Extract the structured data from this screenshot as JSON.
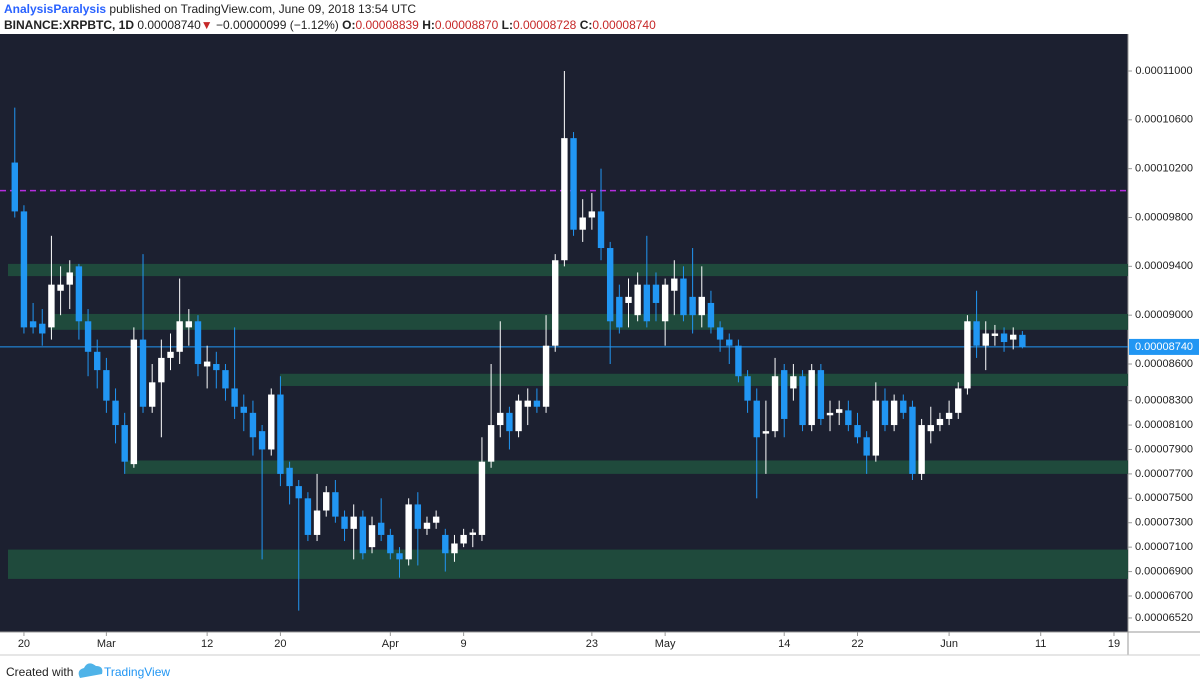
{
  "header": {
    "author": "AnalysisParalysis",
    "published": "published on TradingView.com, June 09, 2018 13:54 UTC",
    "symbol": "BINANCE:XRPBTC, 1D",
    "price": "0.00008740",
    "arrow": "▼",
    "change": "−0.00000099 (−1.12%)",
    "o_label": "O:",
    "o_value": "0.00008839",
    "h_label": "H:",
    "h_value": "0.00008870",
    "l_label": "L:",
    "l_value": "0.00008728",
    "c_label": "C:",
    "c_value": "0.00008740"
  },
  "footer": {
    "created": "Created with",
    "brand": "TradingView"
  },
  "chart_data": {
    "type": "candlestick",
    "categories": [
      null,
      "20",
      null,
      null,
      null,
      null,
      null,
      null,
      null,
      null,
      "Mar",
      null,
      null,
      null,
      null,
      null,
      null,
      null,
      null,
      null,
      null,
      "12",
      null,
      null,
      null,
      null,
      null,
      null,
      null,
      "20",
      null,
      null,
      null,
      null,
      null,
      null,
      null,
      null,
      null,
      null,
      null,
      "Apr",
      null,
      null,
      null,
      null,
      null,
      null,
      null,
      "9",
      null,
      null,
      null,
      null,
      null,
      null,
      null,
      null,
      null,
      null,
      null,
      null,
      null,
      "23",
      null,
      null,
      null,
      null,
      null,
      null,
      null,
      "May",
      null,
      null,
      null,
      null,
      null,
      null,
      null,
      null,
      null,
      null,
      null,
      null,
      "14",
      null,
      null,
      null,
      null,
      null,
      null,
      null,
      "22",
      null,
      null,
      null,
      null,
      null,
      null,
      null,
      null,
      null,
      "Jun",
      null,
      null,
      null,
      null,
      null,
      null,
      null,
      null,
      null,
      "11",
      null,
      null,
      null,
      null,
      null,
      null,
      null,
      "19"
    ],
    "open": [
      0.0001025,
      9.85e-05,
      8.95e-05,
      8.93e-05,
      8.9e-05,
      9.2e-05,
      9.25e-05,
      9.4e-05,
      8.95e-05,
      8.7e-05,
      8.55e-05,
      8.3e-05,
      8.1e-05,
      7.78e-05,
      8.8e-05,
      8.25e-05,
      8.45e-05,
      8.65e-05,
      8.7e-05,
      8.9e-05,
      8.95e-05,
      8.58e-05,
      8.6e-05,
      8.55e-05,
      8.4e-05,
      8.25e-05,
      8.2e-05,
      8.05e-05,
      7.9e-05,
      8.35e-05,
      7.75e-05,
      7.6e-05,
      7.5e-05,
      7.2e-05,
      7.4e-05,
      7.55e-05,
      7.35e-05,
      7.25e-05,
      7.35e-05,
      7.1e-05,
      7.3e-05,
      7.2e-05,
      7.05e-05,
      7e-05,
      7.45e-05,
      7.25e-05,
      7.3e-05,
      7.2e-05,
      7.05e-05,
      7.13e-05,
      7.2e-05,
      7.2e-05,
      7.8e-05,
      8.1e-05,
      8.2e-05,
      8.05e-05,
      8.25e-05,
      8.3e-05,
      8.25e-05,
      8.75e-05,
      9.45e-05,
      0.0001045,
      9.7e-05,
      9.8e-05,
      9.85e-05,
      9.55e-05,
      9.15e-05,
      9.1e-05,
      9e-05,
      9.25e-05,
      9.25e-05,
      8.95e-05,
      9.2e-05,
      9.3e-05,
      9.15e-05,
      9e-05,
      9.1e-05,
      8.9e-05,
      8.8e-05,
      8.75e-05,
      8.5e-05,
      8.3e-05,
      8.03e-05,
      8.05e-05,
      8.55e-05,
      8.4e-05,
      8.5e-05,
      8.1e-05,
      8.55e-05,
      8.18e-05,
      8.2e-05,
      8.22e-05,
      8.1e-05,
      8e-05,
      7.85e-05,
      8.3e-05,
      8.1e-05,
      8.3e-05,
      8.25e-05,
      7.7e-05,
      8.05e-05,
      8.1e-05,
      8.15e-05,
      8.2e-05,
      8.4e-05,
      8.95e-05,
      8.75e-05,
      8.83e-05,
      8.85e-05,
      8.8e-05,
      8.839e-05,
      null,
      null,
      null,
      null,
      null,
      null,
      null,
      null,
      null,
      null
    ],
    "high": [
      0.000107,
      9.9e-05,
      9.1e-05,
      9.05e-05,
      9.65e-05,
      9.4e-05,
      9.45e-05,
      9.42e-05,
      9.05e-05,
      8.8e-05,
      8.65e-05,
      8.4e-05,
      8.2e-05,
      8.9e-05,
      9.5e-05,
      8.6e-05,
      8.8e-05,
      8.85e-05,
      9.3e-05,
      9.05e-05,
      9e-05,
      8.75e-05,
      8.7e-05,
      8.6e-05,
      8.9e-05,
      8.35e-05,
      8.3e-05,
      8.1e-05,
      8.4e-05,
      8.5e-05,
      7.8e-05,
      7.65e-05,
      7.55e-05,
      7.7e-05,
      7.6e-05,
      7.65e-05,
      7.4e-05,
      7.45e-05,
      7.4e-05,
      7.35e-05,
      7.5e-05,
      7.25e-05,
      7.1e-05,
      7.5e-05,
      7.55e-05,
      7.35e-05,
      7.4e-05,
      7.25e-05,
      7.2e-05,
      7.25e-05,
      7.25e-05,
      8e-05,
      8.6e-05,
      8.95e-05,
      8.25e-05,
      8.35e-05,
      8.4e-05,
      8.4e-05,
      9e-05,
      9.5e-05,
      0.00011,
      0.000105,
      9.95e-05,
      0.0001,
      0.000102,
      9.6e-05,
      9.25e-05,
      9.3e-05,
      9.35e-05,
      9.65e-05,
      9.35e-05,
      9.3e-05,
      9.45e-05,
      9.4e-05,
      9.55e-05,
      9.4e-05,
      9.2e-05,
      8.95e-05,
      8.85e-05,
      8.8e-05,
      8.55e-05,
      8.4e-05,
      8.3e-05,
      8.65e-05,
      8.6e-05,
      8.6e-05,
      8.55e-05,
      8.6e-05,
      8.6e-05,
      8.3e-05,
      8.3e-05,
      8.3e-05,
      8.2e-05,
      8.05e-05,
      8.45e-05,
      8.4e-05,
      8.35e-05,
      8.35e-05,
      8.3e-05,
      8.15e-05,
      8.25e-05,
      8.2e-05,
      8.3e-05,
      8.45e-05,
      9e-05,
      9.2e-05,
      8.95e-05,
      8.92e-05,
      8.9e-05,
      8.9e-05,
      8.87e-05,
      null,
      null,
      null,
      null,
      null,
      null,
      null,
      null,
      null,
      null
    ],
    "low": [
      9.8e-05,
      8.85e-05,
      8.85e-05,
      8.75e-05,
      8.8e-05,
      9e-05,
      9.05e-05,
      8.8e-05,
      8.5e-05,
      8.4e-05,
      8.2e-05,
      7.95e-05,
      7.7e-05,
      7.75e-05,
      8.2e-05,
      8.2e-05,
      8e-05,
      8.55e-05,
      8.6e-05,
      8.75e-05,
      8.5e-05,
      8.4e-05,
      8.4e-05,
      8.3e-05,
      8.15e-05,
      8.05e-05,
      7.85e-05,
      7e-05,
      7.85e-05,
      7.6e-05,
      7.45e-05,
      6.58e-05,
      7.15e-05,
      7.15e-05,
      7.35e-05,
      7.3e-05,
      7.15e-05,
      7e-05,
      7e-05,
      7.05e-05,
      7.15e-05,
      7e-05,
      6.85e-05,
      6.95e-05,
      6.95e-05,
      7.2e-05,
      7.25e-05,
      6.9e-05,
      6.98e-05,
      7.1e-05,
      7.1e-05,
      7.15e-05,
      7.75e-05,
      8e-05,
      7.9e-05,
      8e-05,
      8.1e-05,
      8.2e-05,
      8.2e-05,
      8.7e-05,
      9.4e-05,
      9.65e-05,
      9.6e-05,
      9.7e-05,
      9.45e-05,
      8.6e-05,
      8.85e-05,
      8.9e-05,
      8.95e-05,
      8.9e-05,
      8.95e-05,
      8.75e-05,
      9e-05,
      8.95e-05,
      8.85e-05,
      8.9e-05,
      8.85e-05,
      8.7e-05,
      8.6e-05,
      8.45e-05,
      8.2e-05,
      7.5e-05,
      7.7e-05,
      8e-05,
      8e-05,
      8.3e-05,
      8.05e-05,
      8.05e-05,
      8.1e-05,
      8.05e-05,
      8.1e-05,
      8.05e-05,
      7.95e-05,
      7.7e-05,
      7.8e-05,
      8.05e-05,
      8.05e-05,
      8.15e-05,
      7.65e-05,
      7.65e-05,
      7.95e-05,
      8.05e-05,
      8.1e-05,
      8.15e-05,
      8.35e-05,
      8.65e-05,
      8.55e-05,
      8.75e-05,
      8.7e-05,
      8.72e-05,
      8.728e-05,
      null,
      null,
      null,
      null,
      null,
      null,
      null,
      null,
      null,
      null
    ],
    "close": [
      9.85e-05,
      8.9e-05,
      8.9e-05,
      8.85e-05,
      9.25e-05,
      9.25e-05,
      9.35e-05,
      8.95e-05,
      8.7e-05,
      8.55e-05,
      8.3e-05,
      8.1e-05,
      7.8e-05,
      8.8e-05,
      8.25e-05,
      8.45e-05,
      8.65e-05,
      8.7e-05,
      8.95e-05,
      8.95e-05,
      8.6e-05,
      8.62e-05,
      8.55e-05,
      8.4e-05,
      8.25e-05,
      8.2e-05,
      8e-05,
      7.9e-05,
      8.35e-05,
      7.7e-05,
      7.6e-05,
      7.5e-05,
      7.2e-05,
      7.4e-05,
      7.55e-05,
      7.35e-05,
      7.25e-05,
      7.35e-05,
      7.05e-05,
      7.28e-05,
      7.2e-05,
      7.05e-05,
      7e-05,
      7.45e-05,
      7.25e-05,
      7.3e-05,
      7.35e-05,
      7.05e-05,
      7.13e-05,
      7.2e-05,
      7.22e-05,
      7.8e-05,
      8.1e-05,
      8.2e-05,
      8.05e-05,
      8.3e-05,
      8.3e-05,
      8.25e-05,
      8.75e-05,
      9.45e-05,
      0.0001045,
      9.7e-05,
      9.8e-05,
      9.85e-05,
      9.55e-05,
      8.95e-05,
      8.9e-05,
      9.15e-05,
      9.25e-05,
      8.95e-05,
      9.1e-05,
      9.25e-05,
      9.3e-05,
      9e-05,
      9e-05,
      9.15e-05,
      8.9e-05,
      8.8e-05,
      8.75e-05,
      8.5e-05,
      8.3e-05,
      8e-05,
      8.05e-05,
      8.5e-05,
      8.15e-05,
      8.5e-05,
      8.1e-05,
      8.55e-05,
      8.15e-05,
      8.2e-05,
      8.23e-05,
      8.1e-05,
      8e-05,
      7.85e-05,
      8.3e-05,
      8.1e-05,
      8.3e-05,
      8.2e-05,
      7.7e-05,
      8.1e-05,
      8.1e-05,
      8.15e-05,
      8.2e-05,
      8.4e-05,
      8.95e-05,
      8.75e-05,
      8.85e-05,
      8.85e-05,
      8.78e-05,
      8.84e-05,
      8.74e-05,
      null,
      null,
      null,
      null,
      null,
      null,
      null,
      null,
      null,
      null
    ],
    "up_color": "#ffffff",
    "down_color": "#2196f3",
    "zones": [
      [
        9.32e-05,
        9.42e-05
      ],
      [
        8.88e-05,
        9.01e-05
      ],
      [
        8.42e-05,
        8.52e-05
      ],
      [
        7.7e-05,
        7.81e-05
      ],
      [
        6.84e-05,
        7.08e-05
      ]
    ],
    "zone_color": "#1f4a3c",
    "level": 0.0001002,
    "level_color": "#b62de0",
    "last_price": {
      "value": 8.74e-05,
      "label": "0.00008740"
    },
    "last_color": "#2196f3",
    "ylim": [
      6.405e-05,
      0.00011303
    ],
    "yticks": [
      {
        "value": 6.52e-05,
        "label": "0.00006520"
      },
      {
        "value": 6.7e-05,
        "label": "0.00006700"
      },
      {
        "value": 6.9e-05,
        "label": "0.00006900"
      },
      {
        "value": 7.1e-05,
        "label": "0.00007100"
      },
      {
        "value": 7.3e-05,
        "label": "0.00007300"
      },
      {
        "value": 7.5e-05,
        "label": "0.00007500"
      },
      {
        "value": 7.7e-05,
        "label": "0.00007700"
      },
      {
        "value": 7.9e-05,
        "label": "0.00007900"
      },
      {
        "value": 8.1e-05,
        "label": "0.00008100"
      },
      {
        "value": 8.3e-05,
        "label": "0.00008300"
      },
      {
        "value": 8.6e-05,
        "label": "0.00008600"
      },
      {
        "value": 9e-05,
        "label": "0.00009000"
      },
      {
        "value": 9.4e-05,
        "label": "0.00009400"
      },
      {
        "value": 9.8e-05,
        "label": "0.00009800"
      },
      {
        "value": 0.000102,
        "label": "0.00010200"
      },
      {
        "value": 0.000106,
        "label": "0.00010600"
      },
      {
        "value": 0.00011,
        "label": "0.00011000"
      }
    ],
    "grid": false
  }
}
